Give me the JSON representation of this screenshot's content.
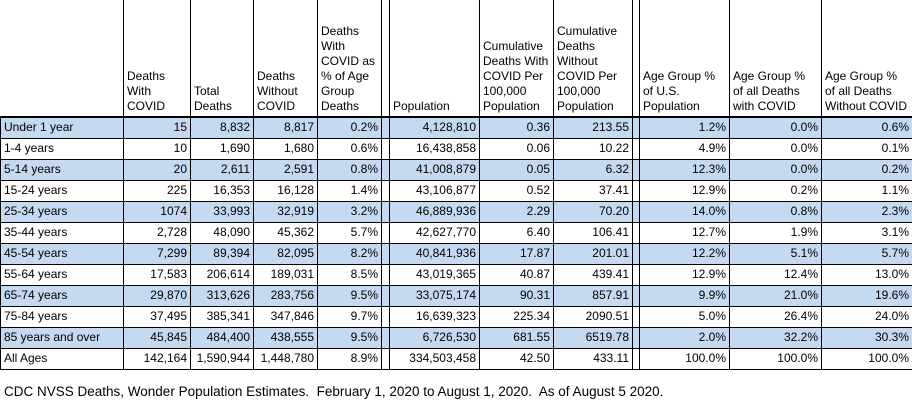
{
  "colors": {
    "band_fill": "#C5D9F1",
    "grid_line": "#000000",
    "background": "#FFFFFF",
    "text": "#000000"
  },
  "table": {
    "columns": [
      {
        "id": "age-group",
        "label": ""
      },
      {
        "id": "deaths-with-covid",
        "label": "Deaths With COVID"
      },
      {
        "id": "total-deaths",
        "label": "Total Deaths"
      },
      {
        "id": "deaths-without-covid",
        "label": "Deaths Without COVID"
      },
      {
        "id": "deaths-with-covid-pct-of-age-group-deaths",
        "label": "Deaths With COVID as % of Age Group Deaths"
      },
      {
        "id": "spacer-1",
        "label": ""
      },
      {
        "id": "population",
        "label": "Population"
      },
      {
        "id": "cumulative-deaths-with-covid-per-100000-population",
        "label": "Cumulative Deaths With COVID Per 100,000 Population"
      },
      {
        "id": "cumulative-deaths-without-covid-per-100000-population",
        "label": "Cumulative Deaths Without COVID Per 100,000 Population"
      },
      {
        "id": "spacer-2",
        "label": ""
      },
      {
        "id": "age-group-pct-of-us-population",
        "label": "Age Group % of U.S. Population"
      },
      {
        "id": "age-group-pct-of-all-deaths-with-covid",
        "label": "Age Group % of all Deaths with COVID"
      },
      {
        "id": "age-group-pct-of-all-deaths-without-covid",
        "label": "Age Group % of all Deaths Without COVID"
      }
    ],
    "rows": [
      [
        "Under 1 year",
        "15",
        "8,832",
        "8,817",
        "0.2%",
        "",
        "4,128,810",
        "0.36",
        "213.55",
        "",
        "1.2%",
        "0.0%",
        "0.6%"
      ],
      [
        "1-4 years",
        "10",
        "1,690",
        "1,680",
        "0.6%",
        "",
        "16,438,858",
        "0.06",
        "10.22",
        "",
        "4.9%",
        "0.0%",
        "0.1%"
      ],
      [
        "5-14 years",
        "20",
        "2,611",
        "2,591",
        "0.8%",
        "",
        "41,008,879",
        "0.05",
        "6.32",
        "",
        "12.3%",
        "0.0%",
        "0.2%"
      ],
      [
        "15-24 years",
        "225",
        "16,353",
        "16,128",
        "1.4%",
        "",
        "43,106,877",
        "0.52",
        "37.41",
        "",
        "12.9%",
        "0.2%",
        "1.1%"
      ],
      [
        "25-34 years",
        "1074",
        "33,993",
        "32,919",
        "3.2%",
        "",
        "46,889,936",
        "2.29",
        "70.20",
        "",
        "14.0%",
        "0.8%",
        "2.3%"
      ],
      [
        "35-44 years",
        "2,728",
        "48,090",
        "45,362",
        "5.7%",
        "",
        "42,627,770",
        "6.40",
        "106.41",
        "",
        "12.7%",
        "1.9%",
        "3.1%"
      ],
      [
        "45-54 years",
        "7,299",
        "89,394",
        "82,095",
        "8.2%",
        "",
        "40,841,936",
        "17.87",
        "201.01",
        "",
        "12.2%",
        "5.1%",
        "5.7%"
      ],
      [
        "55-64 years",
        "17,583",
        "206,614",
        "189,031",
        "8.5%",
        "",
        "43,019,365",
        "40.87",
        "439.41",
        "",
        "12.9%",
        "12.4%",
        "13.0%"
      ],
      [
        "65-74 years",
        "29,870",
        "313,626",
        "283,756",
        "9.5%",
        "",
        "33,075,174",
        "90.31",
        "857.91",
        "",
        "9.9%",
        "21.0%",
        "19.6%"
      ],
      [
        "75-84 years",
        "37,495",
        "385,341",
        "347,846",
        "9.7%",
        "",
        "16,639,323",
        "225.34",
        "2090.51",
        "",
        "5.0%",
        "26.4%",
        "24.0%"
      ],
      [
        "85 years and over",
        "45,845",
        "484,400",
        "438,555",
        "9.5%",
        "",
        "6,726,530",
        "681.55",
        "6519.78",
        "",
        "2.0%",
        "32.2%",
        "30.3%"
      ],
      [
        "All Ages",
        "142,164",
        "1,590,944",
        "1,448,780",
        "8.9%",
        "",
        "334,503,458",
        "42.50",
        "433.11",
        "",
        "100.0%",
        "100.0%",
        "100.0%"
      ]
    ]
  },
  "footer": {
    "note": "CDC NVSS Deaths, Wonder Population Estimates.  February 1, 2020 to August 1, 2020.  As of August 5 2020."
  }
}
